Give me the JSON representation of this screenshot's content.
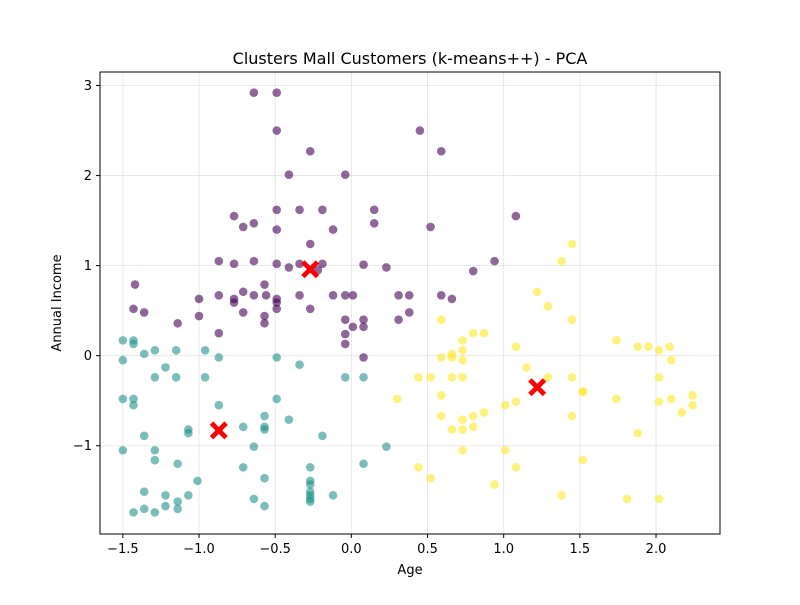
{
  "chart_data": {
    "type": "scatter",
    "title": "Clusters Mall Customers (k-means++) - PCA",
    "xlabel": "Age",
    "ylabel": "Annual Income",
    "xlim": [
      -1.65,
      2.42
    ],
    "ylim": [
      -1.98,
      3.15
    ],
    "xticks": [
      -1.5,
      -1.0,
      -0.5,
      0.0,
      0.5,
      1.0,
      1.5,
      2.0
    ],
    "xtick_labels": [
      "−1.5",
      "−1.0",
      "−0.5",
      "0.0",
      "0.5",
      "1.0",
      "1.5",
      "2.0"
    ],
    "yticks": [
      -1,
      0,
      1,
      2,
      3
    ],
    "ytick_labels": [
      "−1",
      "0",
      "1",
      "2",
      "3"
    ],
    "grid": true,
    "legend": "none",
    "series": [
      {
        "color": "#440154",
        "points": [
          [
            -0.64,
            2.92
          ],
          [
            -0.49,
            2.92
          ],
          [
            -0.49,
            2.5
          ],
          [
            -0.27,
            2.27
          ],
          [
            -0.41,
            2.01
          ],
          [
            -0.04,
            2.01
          ],
          [
            -0.77,
            1.55
          ],
          [
            -0.64,
            1.47
          ],
          [
            -0.49,
            1.62
          ],
          [
            -0.34,
            1.62
          ],
          [
            -0.19,
            1.62
          ],
          [
            -0.71,
            1.43
          ],
          [
            -0.49,
            1.4
          ],
          [
            -0.12,
            1.4
          ],
          [
            -0.27,
            1.24
          ],
          [
            -0.87,
            1.05
          ],
          [
            -0.77,
            1.02
          ],
          [
            -0.64,
            1.05
          ],
          [
            -0.49,
            1.02
          ],
          [
            -0.41,
            0.98
          ],
          [
            -0.34,
            1.02
          ],
          [
            -0.19,
            1.02
          ],
          [
            -0.22,
            0.95
          ],
          [
            -1.42,
            0.79
          ],
          [
            -0.57,
            0.79
          ],
          [
            -0.04,
            0.67
          ],
          [
            -0.71,
            0.71
          ],
          [
            -0.64,
            0.67
          ],
          [
            -0.87,
            0.67
          ],
          [
            -0.77,
            0.63
          ],
          [
            -0.56,
            0.67
          ],
          [
            -0.49,
            0.63
          ],
          [
            -0.34,
            0.67
          ],
          [
            -0.12,
            0.67
          ],
          [
            0.01,
            0.67
          ],
          [
            -1.43,
            0.52
          ],
          [
            -1.36,
            0.48
          ],
          [
            -1.0,
            0.63
          ],
          [
            -0.77,
            0.59
          ],
          [
            -0.71,
            0.48
          ],
          [
            -0.57,
            0.44
          ],
          [
            -0.49,
            0.59
          ],
          [
            -0.49,
            0.52
          ],
          [
            -0.27,
            0.52
          ],
          [
            -1.14,
            0.36
          ],
          [
            -1.0,
            0.44
          ],
          [
            -0.57,
            0.36
          ],
          [
            -0.87,
            0.25
          ],
          [
            -0.04,
            0.4
          ],
          [
            0.01,
            0.32
          ],
          [
            0.08,
            0.4
          ],
          [
            -0.04,
            0.24
          ],
          [
            0.08,
            0.32
          ],
          [
            -0.04,
            0.13
          ],
          [
            0.08,
            -0.02
          ],
          [
            0.08,
            1.01
          ],
          [
            0.23,
            0.98
          ],
          [
            0.15,
            1.62
          ],
          [
            0.15,
            1.47
          ],
          [
            0.45,
            2.5
          ],
          [
            0.59,
            2.27
          ],
          [
            0.52,
            1.43
          ],
          [
            1.08,
            1.55
          ],
          [
            0.31,
            0.67
          ],
          [
            0.38,
            0.67
          ],
          [
            0.59,
            0.67
          ],
          [
            0.66,
            0.63
          ],
          [
            0.31,
            0.4
          ],
          [
            0.38,
            0.48
          ],
          [
            0.8,
            0.94
          ],
          [
            0.94,
            1.05
          ]
        ]
      },
      {
        "color": "#21918c",
        "points": [
          [
            -1.5,
            0.17
          ],
          [
            -1.5,
            -0.05
          ],
          [
            -1.43,
            0.17
          ],
          [
            -1.43,
            0.13
          ],
          [
            -1.36,
            0.02
          ],
          [
            -1.29,
            0.06
          ],
          [
            -1.22,
            -0.13
          ],
          [
            -1.15,
            0.06
          ],
          [
            -1.15,
            -0.24
          ],
          [
            -1.29,
            -0.24
          ],
          [
            -1.5,
            -0.48
          ],
          [
            -1.43,
            -0.48
          ],
          [
            -1.43,
            -0.55
          ],
          [
            -0.96,
            0.06
          ],
          [
            -0.96,
            -0.24
          ],
          [
            -0.87,
            -0.02
          ],
          [
            -0.49,
            -0.02
          ],
          [
            -0.34,
            -0.1
          ],
          [
            -0.04,
            -0.24
          ],
          [
            0.08,
            -0.24
          ],
          [
            -0.49,
            -0.48
          ],
          [
            -0.87,
            -0.55
          ],
          [
            -0.57,
            -0.67
          ],
          [
            -0.57,
            -0.79
          ],
          [
            -0.57,
            -0.82
          ],
          [
            -0.71,
            -0.79
          ],
          [
            -0.41,
            -0.71
          ],
          [
            -1.5,
            -1.05
          ],
          [
            -1.36,
            -0.89
          ],
          [
            -1.29,
            -1.05
          ],
          [
            -1.29,
            -1.16
          ],
          [
            -1.07,
            -0.82
          ],
          [
            -1.07,
            -0.86
          ],
          [
            -1.14,
            -1.2
          ],
          [
            -0.64,
            -1.01
          ],
          [
            -0.71,
            -1.24
          ],
          [
            -0.57,
            -1.36
          ],
          [
            -0.27,
            -1.24
          ],
          [
            -0.19,
            -0.89
          ],
          [
            0.08,
            -1.2
          ],
          [
            0.23,
            -1.01
          ],
          [
            -1.01,
            -1.39
          ],
          [
            -1.07,
            -1.55
          ],
          [
            -1.14,
            -1.62
          ],
          [
            -1.14,
            -1.7
          ],
          [
            -1.22,
            -1.55
          ],
          [
            -1.22,
            -1.67
          ],
          [
            -1.29,
            -1.74
          ],
          [
            -1.36,
            -1.51
          ],
          [
            -1.36,
            -1.7
          ],
          [
            -1.43,
            -1.74
          ],
          [
            -0.64,
            -1.59
          ],
          [
            -0.57,
            -1.67
          ],
          [
            -0.27,
            -1.39
          ],
          [
            -0.27,
            -1.43
          ],
          [
            -0.27,
            -1.51
          ],
          [
            -0.27,
            -1.55
          ],
          [
            -0.27,
            -1.59
          ],
          [
            -0.27,
            -1.62
          ],
          [
            -0.12,
            -1.55
          ]
        ]
      },
      {
        "color": "#fde725",
        "points": [
          [
            1.45,
            1.24
          ],
          [
            1.38,
            1.05
          ],
          [
            1.22,
            0.71
          ],
          [
            1.29,
            0.55
          ],
          [
            1.45,
            0.4
          ],
          [
            0.59,
            0.4
          ],
          [
            0.73,
            0.17
          ],
          [
            0.8,
            0.25
          ],
          [
            0.87,
            0.25
          ],
          [
            1.08,
            0.1
          ],
          [
            0.73,
            0.06
          ],
          [
            0.59,
            -0.02
          ],
          [
            0.66,
            0.02
          ],
          [
            0.66,
            -0.02
          ],
          [
            0.73,
            -0.05
          ],
          [
            1.15,
            -0.13
          ],
          [
            0.44,
            -0.24
          ],
          [
            0.52,
            -0.24
          ],
          [
            0.66,
            -0.24
          ],
          [
            0.73,
            -0.24
          ],
          [
            1.29,
            -0.24
          ],
          [
            1.45,
            -0.24
          ],
          [
            1.52,
            -0.4
          ],
          [
            1.74,
            0.17
          ],
          [
            1.88,
            0.1
          ],
          [
            1.95,
            0.1
          ],
          [
            2.02,
            0.06
          ],
          [
            2.09,
            0.1
          ],
          [
            2.1,
            -0.05
          ],
          [
            2.02,
            -0.24
          ],
          [
            2.02,
            -0.51
          ],
          [
            2.1,
            -0.48
          ],
          [
            2.17,
            -0.63
          ],
          [
            2.24,
            -0.44
          ],
          [
            2.24,
            -0.55
          ],
          [
            1.74,
            -0.48
          ],
          [
            0.3,
            -0.48
          ],
          [
            0.59,
            -0.44
          ],
          [
            0.59,
            -0.67
          ],
          [
            0.66,
            -0.82
          ],
          [
            0.73,
            -0.71
          ],
          [
            0.73,
            -0.82
          ],
          [
            0.8,
            -0.79
          ],
          [
            0.8,
            -0.67
          ],
          [
            0.87,
            -0.63
          ],
          [
            1.01,
            -0.55
          ],
          [
            1.08,
            -0.51
          ],
          [
            1.45,
            -0.67
          ],
          [
            1.88,
            -0.86
          ],
          [
            0.44,
            -1.24
          ],
          [
            0.52,
            -1.36
          ],
          [
            0.73,
            -1.05
          ],
          [
            0.94,
            -1.43
          ],
          [
            1.01,
            -1.05
          ],
          [
            1.08,
            -1.24
          ],
          [
            1.38,
            -1.55
          ],
          [
            1.52,
            -1.16
          ],
          [
            1.81,
            -1.59
          ],
          [
            2.02,
            -1.59
          ],
          [
            1.52,
            -0.4
          ]
        ]
      }
    ],
    "centroids": {
      "color": "#ff0000",
      "points": [
        [
          -0.27,
          0.96
        ],
        [
          -0.87,
          -0.83
        ],
        [
          1.22,
          -0.35
        ]
      ]
    }
  }
}
